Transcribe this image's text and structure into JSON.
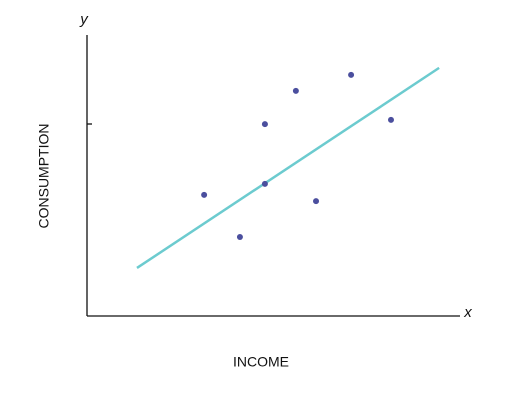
{
  "chart_data": {
    "type": "scatter",
    "xlabel": "INCOME",
    "ylabel": "CONSUMPTION",
    "x_axis_letter": "x",
    "y_axis_letter": "y",
    "x": [
      31.4,
      41.0,
      47.7,
      47.7,
      56.0,
      61.4,
      70.8,
      81.5
    ],
    "y": [
      43.1,
      28.1,
      68.3,
      47.0,
      80.1,
      40.9,
      85.8,
      69.8
    ],
    "color": "#4b4f9e",
    "trendline": {
      "x": [
        13.4,
        94.4
      ],
      "y": [
        17.1,
        88.3
      ],
      "color": "#6ccbcf"
    },
    "xlim": [
      0,
      100
    ],
    "ylim": [
      0,
      100
    ]
  }
}
